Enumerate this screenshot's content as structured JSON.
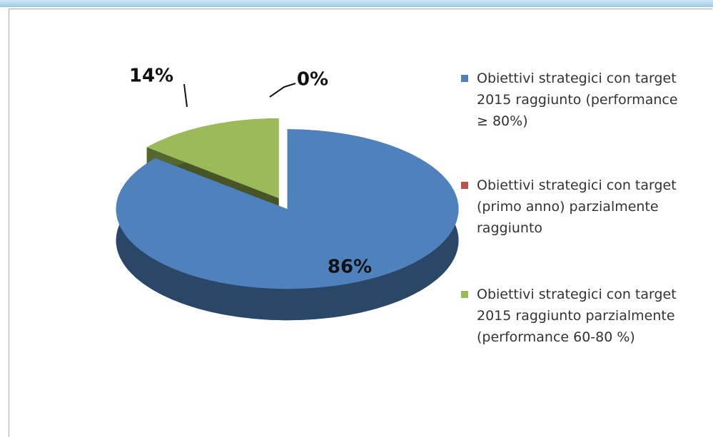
{
  "chart_data": {
    "type": "pie",
    "categories": [
      "Obiettivi strategici con target  2015 raggiunto (performance ≥ 80%)",
      "Obiettivi strategici con target (primo anno) parzialmente raggiunto",
      "Obiettivi strategici con target  2015 raggiunto parzialmente (performance 60-80 %)"
    ],
    "values": [
      86,
      0,
      14
    ],
    "value_labels": [
      "86%",
      "0%",
      "14%"
    ],
    "colors": [
      "#4f81bd",
      "#c0504d",
      "#9bbb59"
    ],
    "legend": "right"
  }
}
